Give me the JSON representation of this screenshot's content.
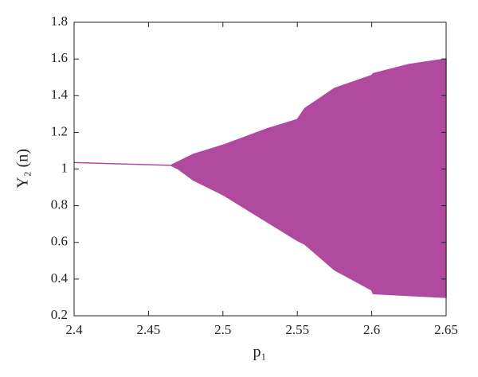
{
  "chart_data": {
    "type": "area-band",
    "x_label": "p₁",
    "y_label": "Y₂ (n)",
    "x": [
      2.4,
      2.465,
      2.47,
      2.48,
      2.5,
      2.52,
      2.53,
      2.55,
      2.555,
      2.575,
      2.6,
      2.601,
      2.625,
      2.65
    ],
    "upper": [
      1.035,
      1.02,
      1.04,
      1.08,
      1.13,
      1.19,
      1.22,
      1.27,
      1.33,
      1.44,
      1.51,
      1.52,
      1.57,
      1.6
    ],
    "lower": [
      1.035,
      1.02,
      1.0,
      0.94,
      0.86,
      0.76,
      0.71,
      0.61,
      0.59,
      0.45,
      0.34,
      0.32,
      0.31,
      0.3
    ],
    "color": "#b04a9e",
    "xlim": [
      2.4,
      2.65
    ],
    "xticks": [
      2.4,
      2.45,
      2.5,
      2.55,
      2.6,
      2.65
    ],
    "ylim": [
      0.2,
      1.8
    ],
    "yticks": [
      0.2,
      0.4,
      0.6,
      0.8,
      1,
      1.2,
      1.4,
      1.6,
      1.8
    ]
  }
}
